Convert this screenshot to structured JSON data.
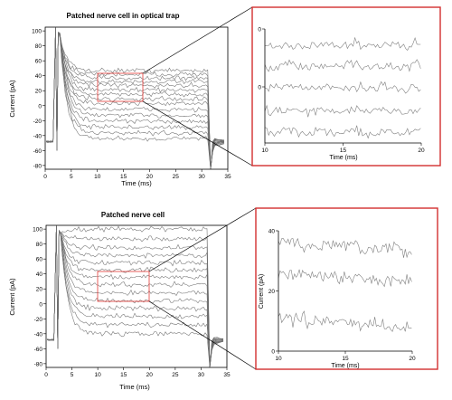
{
  "chart_data": [
    {
      "id": "top_main",
      "type": "line",
      "title": "Patched nerve cell in optical trap",
      "xlabel": "Time (ms)",
      "ylabel": "Current (pA)",
      "xlim": [
        0,
        35
      ],
      "ylim": [
        -85,
        105
      ],
      "xticks": [
        0,
        5,
        10,
        15,
        20,
        25,
        30,
        35
      ],
      "yticks": [
        -80,
        -60,
        -40,
        -20,
        0,
        20,
        40,
        60,
        80,
        100
      ],
      "step_window_ms": [
        2,
        31.5
      ],
      "traces_pA": [
        47,
        42,
        37,
        32,
        27,
        21,
        15,
        9,
        3,
        -5,
        -13,
        -21,
        -29,
        -37,
        -44
      ],
      "region_of_interest": {
        "x": [
          10,
          18
        ],
        "y": [
          10,
          45
        ]
      }
    },
    {
      "id": "top_zoom",
      "type": "line",
      "title": "",
      "xlabel": "Time (ms)",
      "ylabel": "",
      "xlim": [
        10,
        20
      ],
      "xticks": [
        10,
        15,
        20
      ],
      "yticks": [
        0,
        0
      ],
      "traces_level": [
        38,
        32,
        26,
        20,
        14
      ]
    },
    {
      "id": "bottom_main",
      "type": "line",
      "title": "Patched nerve cell",
      "xlabel": "Time (ms)",
      "ylabel": "Current (pA)",
      "xlim": [
        0,
        35
      ],
      "ylim": [
        -85,
        105
      ],
      "xticks": [
        0,
        5,
        10,
        15,
        20,
        25,
        30,
        35
      ],
      "yticks": [
        -80,
        -60,
        -40,
        -20,
        0,
        20,
        40,
        60,
        80,
        100
      ],
      "step_window_ms": [
        2,
        31.5
      ],
      "traces_pA": [
        100,
        87,
        75,
        65,
        55,
        45,
        36,
        26,
        15,
        4,
        -6,
        -17,
        -28,
        -40
      ],
      "region_of_interest": {
        "x": [
          10,
          20
        ],
        "y": [
          0,
          40
        ]
      }
    },
    {
      "id": "bottom_zoom",
      "type": "line",
      "title": "",
      "xlabel": "Time (ms)",
      "ylabel": "Current (pA)",
      "xlim": [
        10,
        20
      ],
      "ylim": [
        0,
        40
      ],
      "xticks": [
        10,
        15,
        20
      ],
      "yticks": [
        0,
        20,
        40
      ],
      "traces_pA": [
        36,
        26,
        11
      ]
    }
  ]
}
